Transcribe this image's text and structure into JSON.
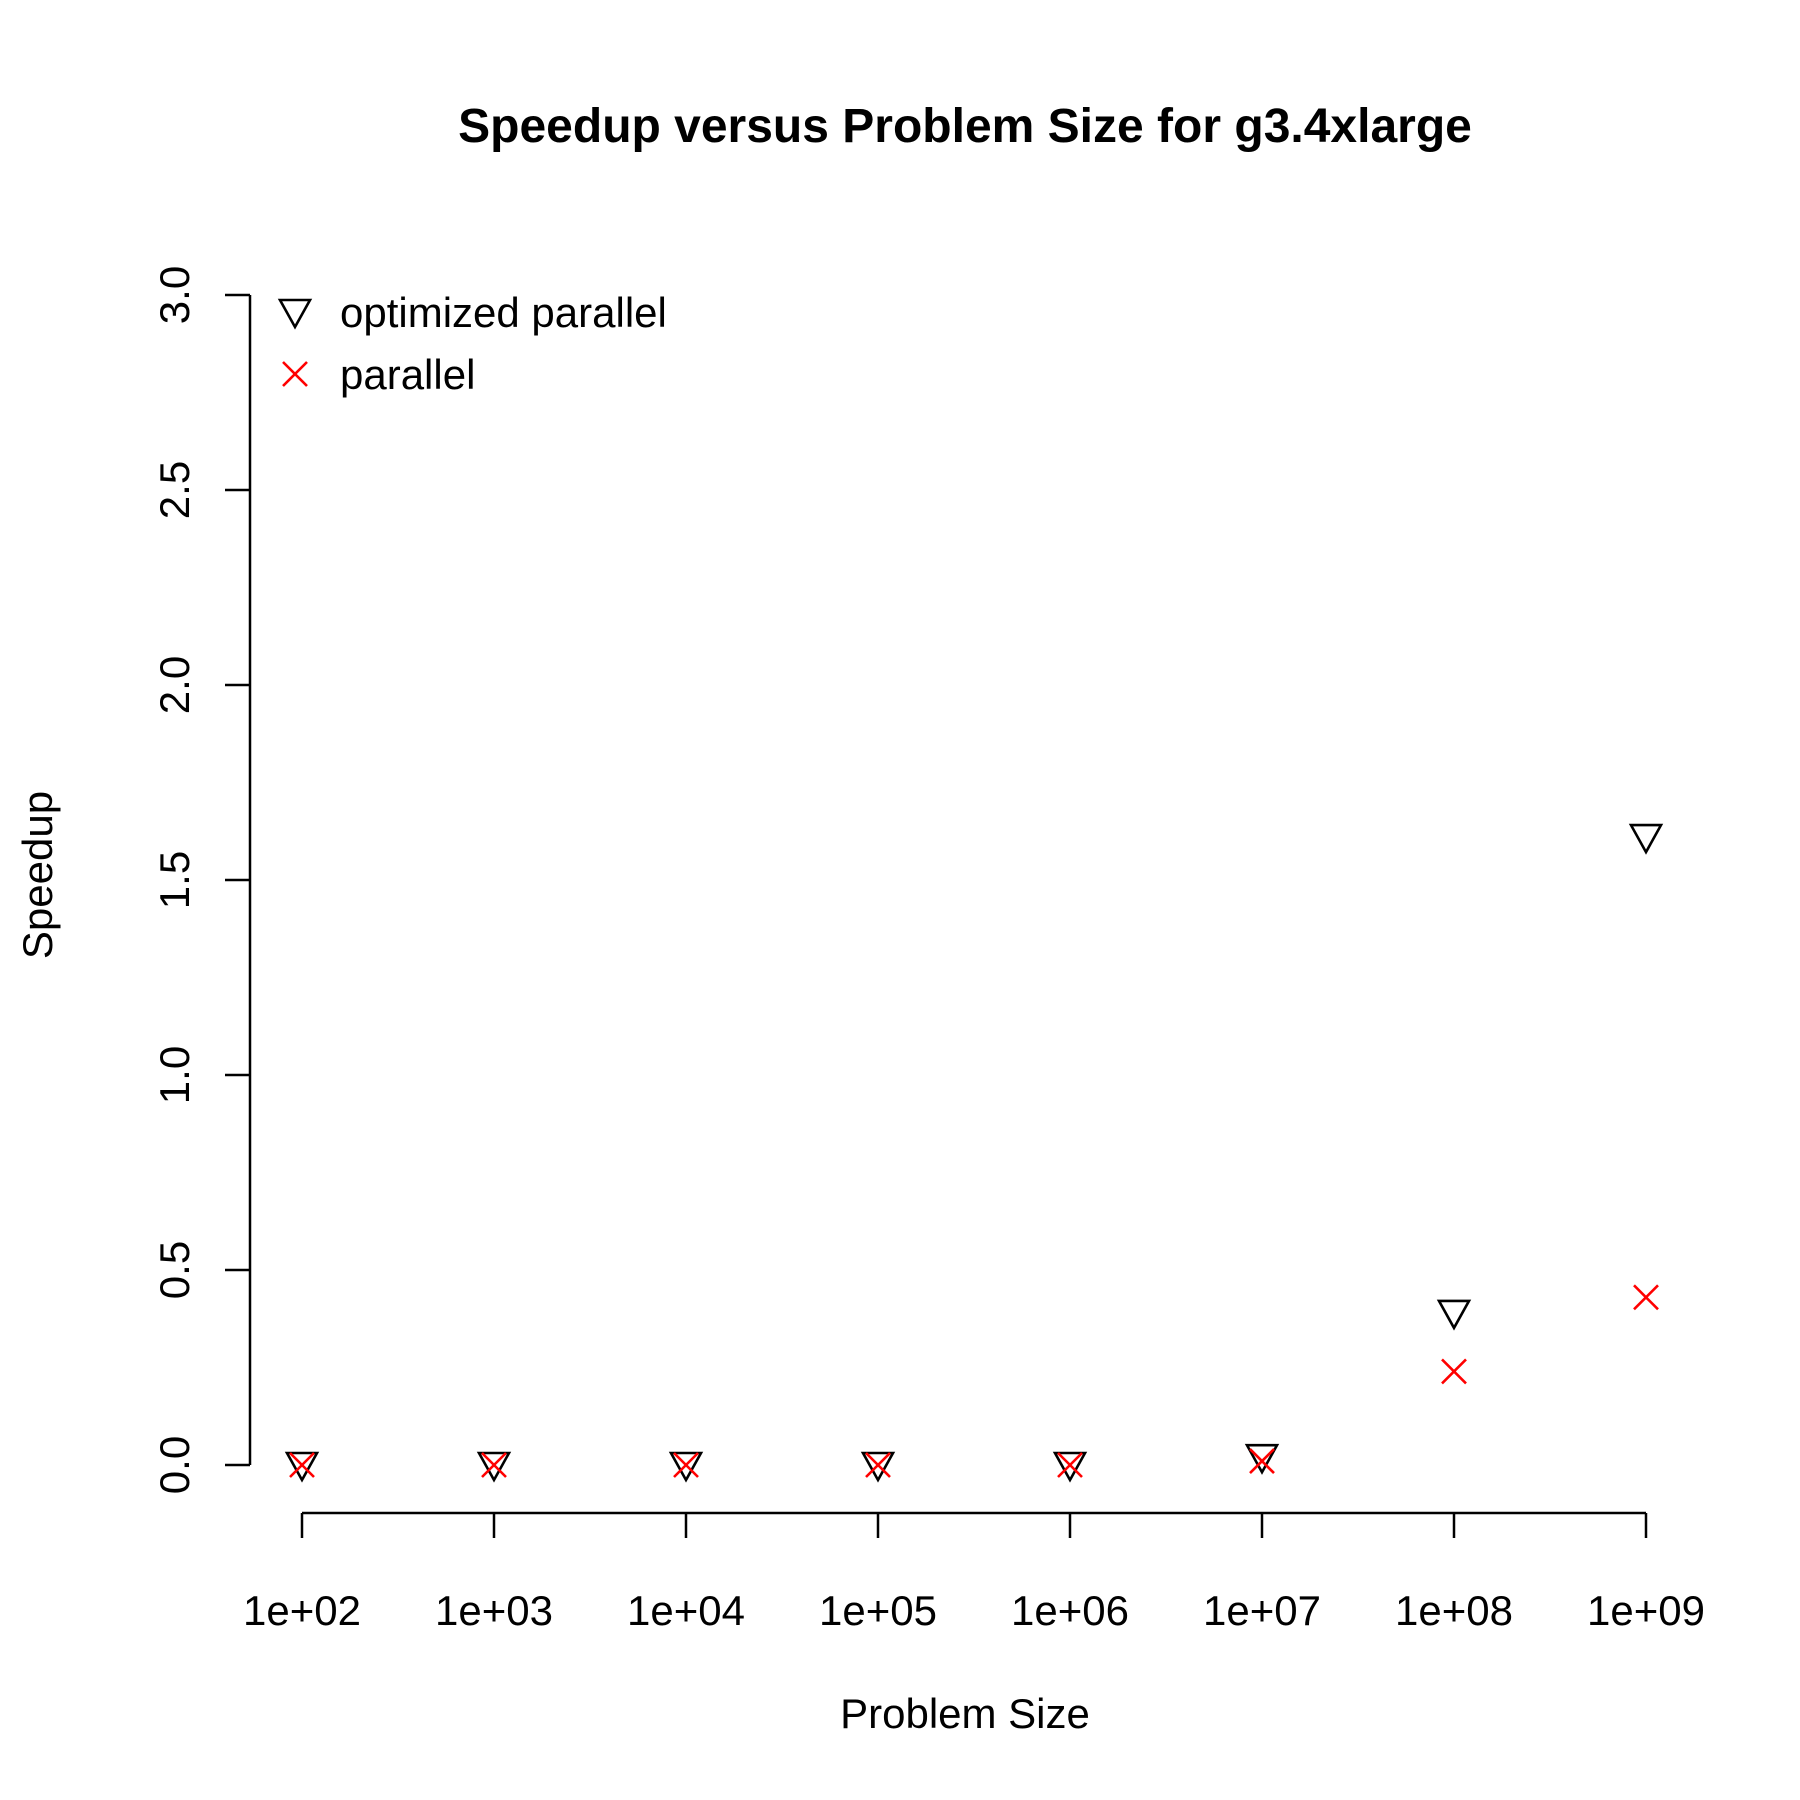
{
  "chart_data": {
    "type": "scatter",
    "title": "Speedup versus Problem Size for g3.4xlarge",
    "xlabel": "Problem Size",
    "ylabel": "Speedup",
    "x_scale": "log10",
    "x": [
      100,
      1000,
      10000,
      100000,
      1000000,
      10000000,
      100000000,
      1000000000
    ],
    "xticks": [
      100,
      1000,
      10000,
      100000,
      1000000,
      10000000,
      100000000,
      1000000000
    ],
    "xtick_labels": [
      "1e+02",
      "1e+03",
      "1e+04",
      "1e+05",
      "1e+06",
      "1e+07",
      "1e+08",
      "1e+09"
    ],
    "ylim": [
      0,
      3
    ],
    "yticks": [
      0,
      0.5,
      1,
      1.5,
      2,
      2.5,
      3
    ],
    "ytick_labels": [
      "0.0",
      "0.5",
      "1.0",
      "1.5",
      "2.0",
      "2.5",
      "3.0"
    ],
    "grid": false,
    "legend_position": "top-left",
    "series": [
      {
        "name": "optimized parallel",
        "marker": "triangle-down",
        "color": "#000000",
        "values": [
          0.0,
          0.0,
          0.0,
          0.0,
          0.0,
          0.02,
          0.39,
          1.61
        ]
      },
      {
        "name": "parallel",
        "marker": "x",
        "color": "#ff0000",
        "values": [
          0.0,
          0.0,
          0.0,
          0.0,
          0.0,
          0.01,
          0.24,
          0.43
        ]
      }
    ]
  }
}
